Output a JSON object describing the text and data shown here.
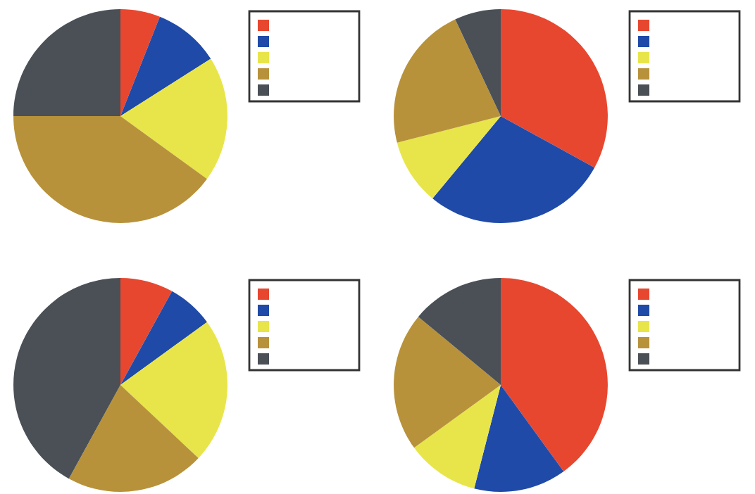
{
  "chart_data": [
    {
      "type": "pie",
      "categories": [
        null,
        null,
        null,
        null,
        null
      ],
      "values": [
        6,
        10,
        19,
        40,
        25
      ],
      "colors": [
        "#e8472f",
        "#1f4aa8",
        "#e8e54a",
        "#b8923a",
        "#4a5056"
      ]
    },
    {
      "type": "pie",
      "categories": [
        null,
        null,
        null,
        null,
        null
      ],
      "values": [
        33,
        28,
        10,
        22,
        7
      ],
      "colors": [
        "#e8472f",
        "#1f4aa8",
        "#e8e54a",
        "#b8923a",
        "#4a5056"
      ]
    },
    {
      "type": "pie",
      "categories": [
        null,
        null,
        null,
        null,
        null
      ],
      "values": [
        8,
        7,
        22,
        21,
        42
      ],
      "colors": [
        "#e8472f",
        "#1f4aa8",
        "#e8e54a",
        "#b8923a",
        "#4a5056"
      ]
    },
    {
      "type": "pie",
      "categories": [
        null,
        null,
        null,
        null,
        null
      ],
      "values": [
        40,
        14,
        11,
        21,
        14
      ],
      "colors": [
        "#e8472f",
        "#1f4aa8",
        "#e8e54a",
        "#b8923a",
        "#4a5056"
      ]
    }
  ]
}
